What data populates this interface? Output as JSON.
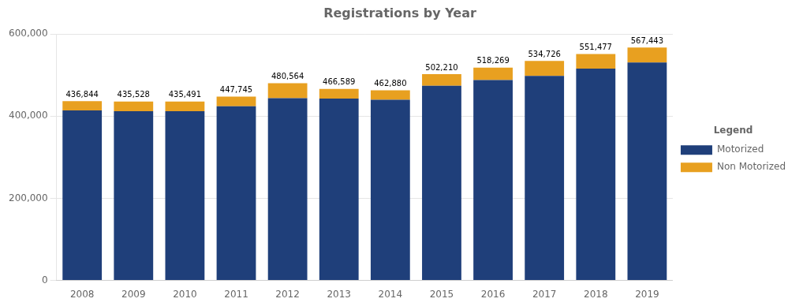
{
  "chart_data": {
    "type": "bar",
    "title": "Registrations by Year",
    "categories": [
      "2008",
      "2009",
      "2010",
      "2011",
      "2012",
      "2013",
      "2014",
      "2015",
      "2016",
      "2017",
      "2018",
      "2019"
    ],
    "series": [
      {
        "name": "Motorized",
        "color": "#1F3F7A",
        "values": [
          414000,
          412000,
          412000,
          424000,
          444000,
          443000,
          440000,
          474000,
          488000,
          498000,
          516000,
          531000
        ]
      },
      {
        "name": "Non Motorized",
        "color": "#E8A020",
        "values": [
          22844,
          23528,
          23491,
          23745,
          36564,
          23589,
          22880,
          28210,
          30269,
          36726,
          35477,
          36443
        ]
      }
    ],
    "stacked": true,
    "totals": [
      436844,
      435528,
      435491,
      447745,
      480564,
      466589,
      462880,
      502210,
      518269,
      534726,
      551477,
      567443
    ],
    "total_labels": [
      "436,844",
      "435,528",
      "435,491",
      "447,745",
      "480,564",
      "466,589",
      "462,880",
      "502,210",
      "518,269",
      "534,726",
      "551,477",
      "567,443"
    ],
    "ylim": [
      0,
      600000
    ],
    "yticks": [
      0,
      {
        "value": 200000,
        "label": "200,000"
      },
      {
        "value": 400000,
        "label": "400,000"
      },
      {
        "value": 600000,
        "label": "600,000"
      }
    ],
    "grid": true,
    "legend": "right",
    "legend_title": "Legend"
  }
}
